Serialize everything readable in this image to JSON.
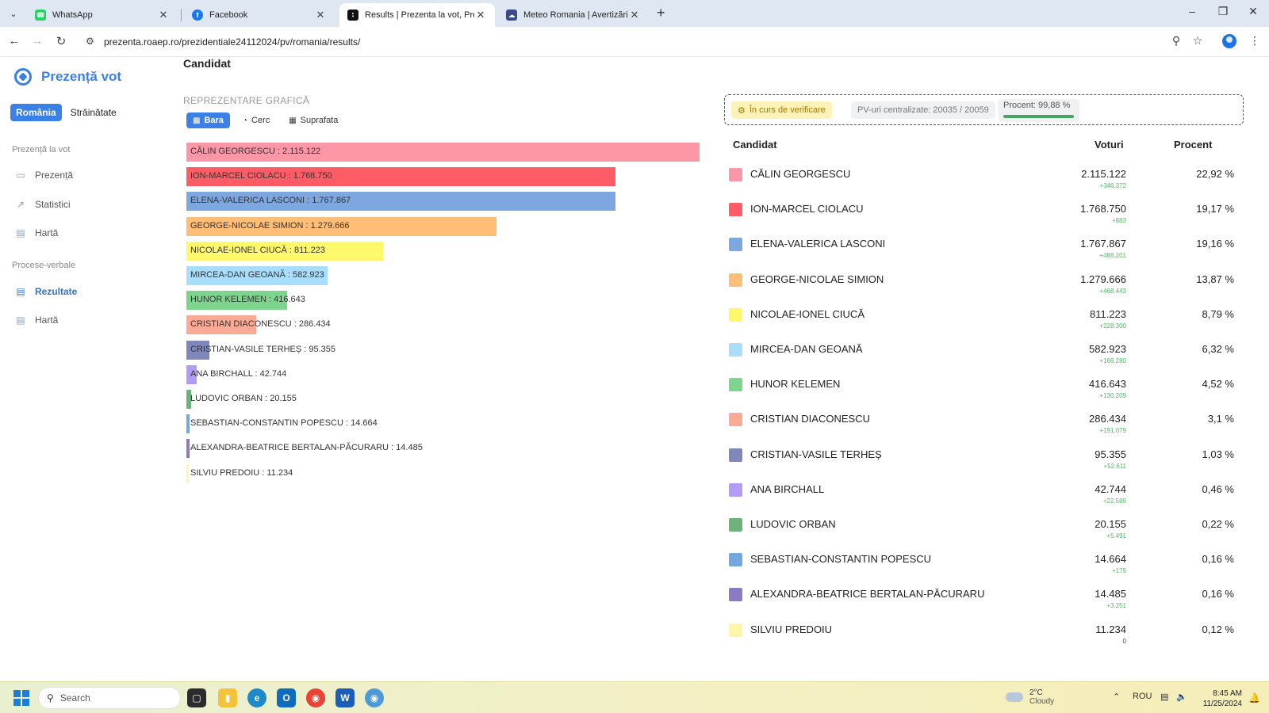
{
  "browser": {
    "tabs": [
      {
        "title": "WhatsApp",
        "icon": "whatsapp-icon",
        "color": "#25d366",
        "active": false
      },
      {
        "title": "Facebook",
        "icon": "facebook-icon",
        "color": "#1877f2",
        "active": false
      },
      {
        "title": "Results | Prezenta la vot, Prezid",
        "icon": "chart-favicon-icon",
        "color": "#111111",
        "active": true
      },
      {
        "title": "Meteo Romania | Avertizări Nov",
        "icon": "meteo-icon",
        "color": "#3b4a8a",
        "active": false
      }
    ],
    "url": "prezenta.roaep.ro/prezidentiale24112024/pv/romania/results/"
  },
  "sidebar": {
    "logo": "Prezență vot",
    "region_tabs": [
      "România",
      "Străinătate"
    ],
    "section1": "Prezență la vot",
    "section1_items": [
      {
        "label": "Prezență",
        "icon": "monitor-icon"
      },
      {
        "label": "Statistici",
        "icon": "trend-icon"
      },
      {
        "label": "Hartă",
        "icon": "map-icon"
      }
    ],
    "section2": "Procese-verbale",
    "section2_items": [
      {
        "label": "Rezultate",
        "icon": "document-icon",
        "active": true
      },
      {
        "label": "Hartă",
        "icon": "map-icon",
        "active": false
      }
    ]
  },
  "main": {
    "heading": "Candidat",
    "chart_heading": "REPREZENTARE GRAFICĂ",
    "chart_tabs": [
      "Bara",
      "Cerc",
      "Suprafata"
    ],
    "status": {
      "badge": "În curs de verificare",
      "pv": "PV-uri centralizate: 20035 / 20059",
      "percent_label": "Procent: 99,88 %",
      "percent_value": 99.88
    },
    "table_headers": {
      "candidate": "Candidat",
      "votes": "Voturi",
      "percent": "Procent"
    }
  },
  "chart_data": {
    "type": "bar",
    "categories": [
      "CĂLIN GEORGESCU",
      "ION-MARCEL CIOLACU",
      "ELENA-VALERICA LASCONI",
      "GEORGE-NICOLAE SIMION",
      "NICOLAE-IONEL CIUCĂ",
      "MIRCEA-DAN GEOANĂ",
      "HUNOR KELEMEN",
      "CRISTIAN DIACONESCU",
      "CRISTIAN-VASILE TERHEȘ",
      "ANA BIRCHALL",
      "LUDOVIC ORBAN",
      "SEBASTIAN-CONSTANTIN POPESCU",
      "ALEXANDRA-BEATRICE BERTALAN-PĂCURARU",
      "SILVIU PREDOIU"
    ],
    "values": [
      2115122,
      1768750,
      1767867,
      1279666,
      811223,
      582923,
      416643,
      286434,
      95355,
      42744,
      20155,
      14664,
      14485,
      11234
    ],
    "labels": [
      "CĂLIN GEORGESCU : 2.115.122",
      "ION-MARCEL CIOLACU : 1.768.750",
      "ELENA-VALERICA LASCONI : 1.767.867",
      "GEORGE-NICOLAE SIMION : 1.279.666",
      "NICOLAE-IONEL CIUCĂ : 811.223",
      "MIRCEA-DAN GEOANĂ : 582.923",
      "HUNOR KELEMEN : 416.643",
      "CRISTIAN DIACONESCU : 286.434",
      "CRISTIAN-VASILE TERHEȘ : 95.355",
      "ANA BIRCHALL : 42.744",
      "LUDOVIC ORBAN : 20.155",
      "SEBASTIAN-CONSTANTIN POPESCU : 14.664",
      "ALEXANDRA-BEATRICE BERTALAN-PĂCURARU : 14.485",
      "SILVIU PREDOIU : 11.234"
    ],
    "colors": [
      "#fb97a6",
      "#ff5c66",
      "#7ea6df",
      "#ffbe77",
      "#fff86a",
      "#a9ddfc",
      "#7dd48d",
      "#fbaa95",
      "#8088bb",
      "#b39cf7",
      "#6cb27a",
      "#74a7de",
      "#8b7bc4",
      "#fff6a8"
    ],
    "orientation": "horizontal"
  },
  "results": [
    {
      "name": "CĂLIN GEORGESCU",
      "votes": "2.115.122",
      "delta": "+346.372",
      "percent": "22,92 %"
    },
    {
      "name": "ION-MARCEL CIOLACU",
      "votes": "1.768.750",
      "delta": "+883",
      "percent": "19,17 %"
    },
    {
      "name": "ELENA-VALERICA LASCONI",
      "votes": "1.767.867",
      "delta": "+488.201",
      "percent": "19,16 %"
    },
    {
      "name": "GEORGE-NICOLAE SIMION",
      "votes": "1.279.666",
      "delta": "+468.443",
      "percent": "13,87 %"
    },
    {
      "name": "NICOLAE-IONEL CIUCĂ",
      "votes": "811.223",
      "delta": "+228.300",
      "percent": "8,79 %"
    },
    {
      "name": "MIRCEA-DAN GEOANĂ",
      "votes": "582.923",
      "delta": "+166.280",
      "percent": "6,32 %"
    },
    {
      "name": "HUNOR KELEMEN",
      "votes": "416.643",
      "delta": "+130.209",
      "percent": "4,52 %"
    },
    {
      "name": "CRISTIAN DIACONESCU",
      "votes": "286.434",
      "delta": "+191.079",
      "percent": "3,1 %"
    },
    {
      "name": "CRISTIAN-VASILE TERHEȘ",
      "votes": "95.355",
      "delta": "+52.611",
      "percent": "1,03 %"
    },
    {
      "name": "ANA BIRCHALL",
      "votes": "42.744",
      "delta": "+22.589",
      "percent": "0,46 %"
    },
    {
      "name": "LUDOVIC ORBAN",
      "votes": "20.155",
      "delta": "+5.491",
      "percent": "0,22 %"
    },
    {
      "name": "SEBASTIAN-CONSTANTIN POPESCU",
      "votes": "14.664",
      "delta": "+179",
      "percent": "0,16 %"
    },
    {
      "name": "ALEXANDRA-BEATRICE BERTALAN-PĂCURARU",
      "votes": "14.485",
      "delta": "+3.251",
      "percent": "0,16 %"
    },
    {
      "name": "SILVIU PREDOIU",
      "votes": "11.234",
      "delta": "0",
      "percent": "0,12 %"
    }
  ],
  "taskbar": {
    "search": "Search",
    "weather_temp": "2°C",
    "weather_desc": "Cloudy",
    "lang": "ROU",
    "time": "8:45 AM",
    "date": "11/25/2024"
  }
}
